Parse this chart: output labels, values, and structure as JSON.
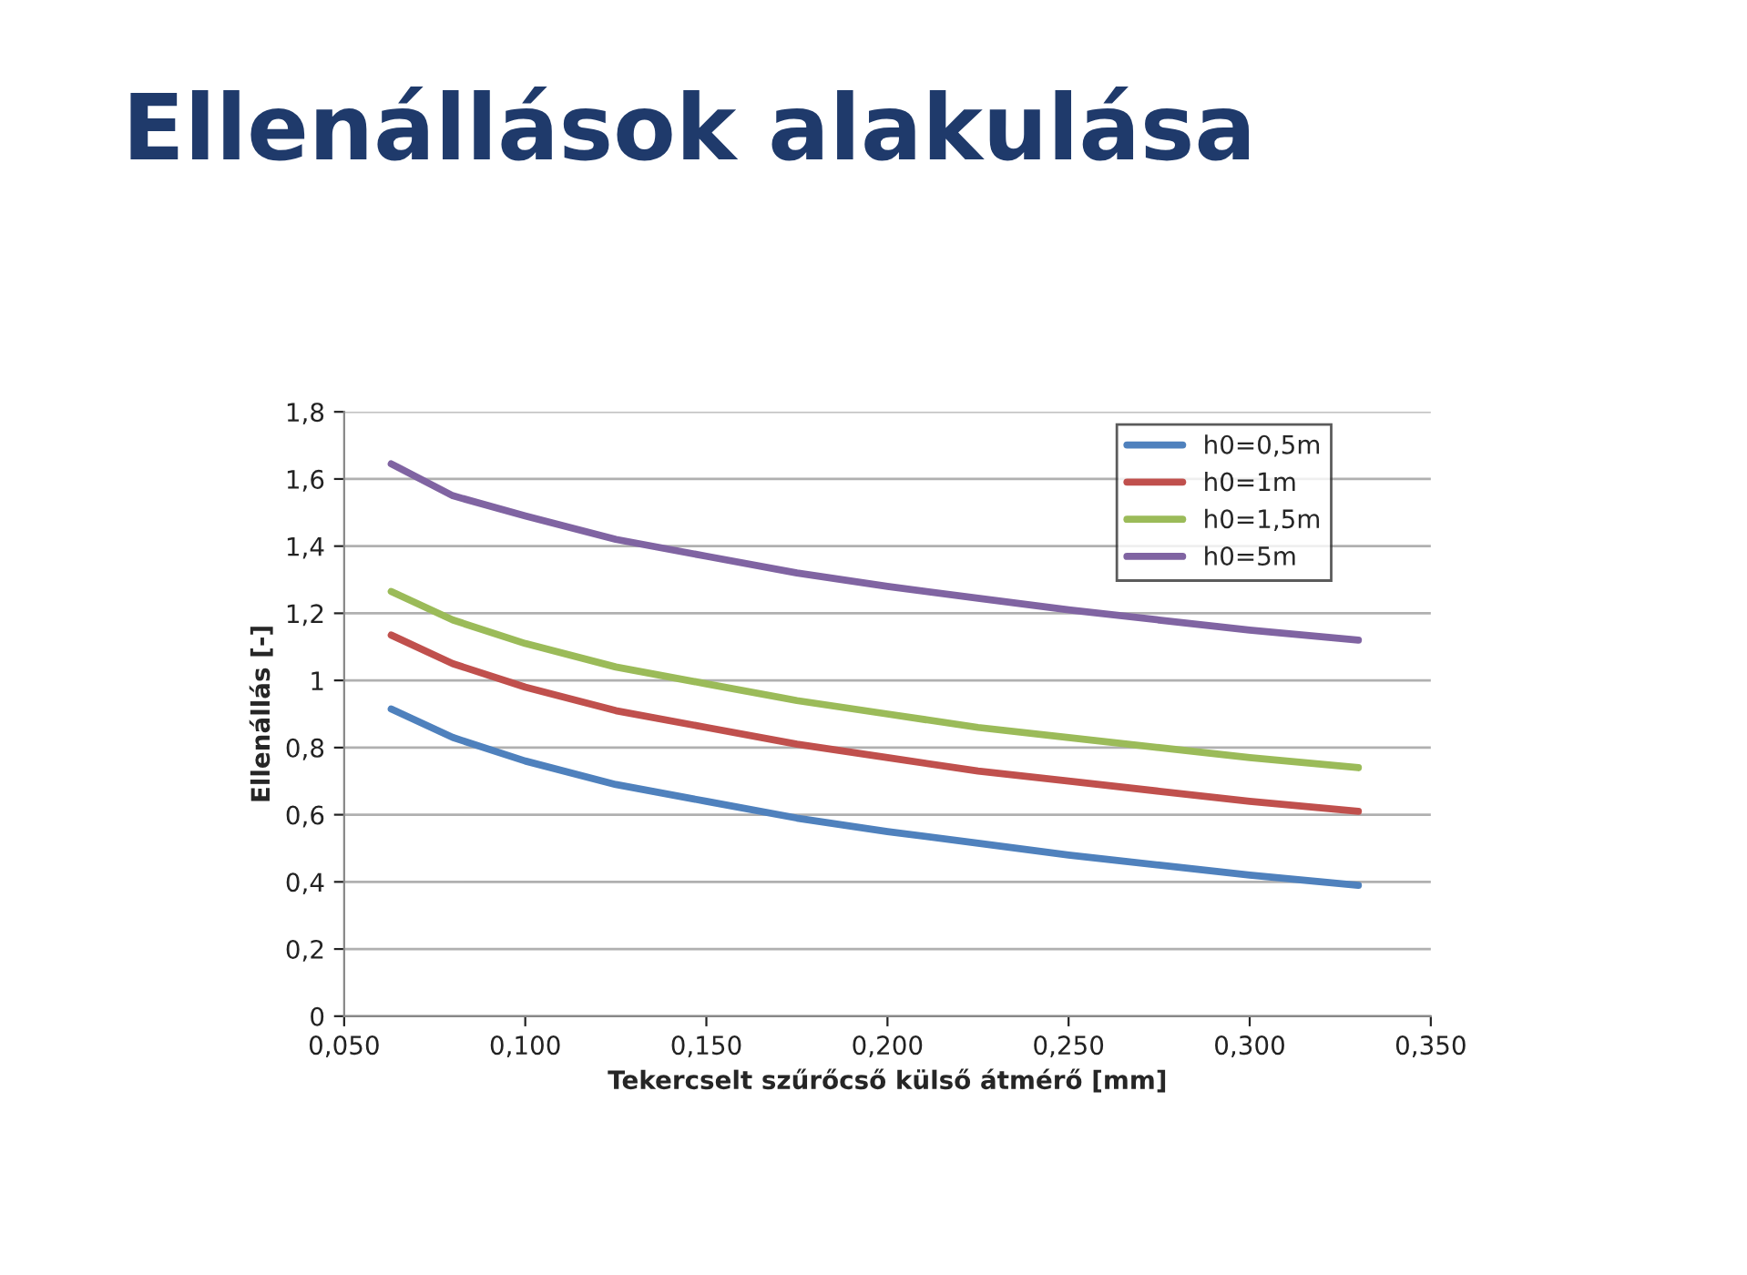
{
  "chart_data": {
    "type": "line",
    "title": "Ellenállások alakulása",
    "xlabel": "Tekercselt szűrőcső külső átmérő [mm]",
    "ylabel": "Ellenállás [-]",
    "x": [
      0.063,
      0.08,
      0.1,
      0.125,
      0.15,
      0.175,
      0.2,
      0.225,
      0.25,
      0.275,
      0.3,
      0.33
    ],
    "series": [
      {
        "name": "h0=0,5m",
        "color": "#4f81bd",
        "values": [
          0.915,
          0.83,
          0.76,
          0.69,
          0.64,
          0.59,
          0.55,
          0.515,
          0.48,
          0.45,
          0.42,
          0.39
        ]
      },
      {
        "name": "h0=1m",
        "color": "#c0504d",
        "values": [
          1.135,
          1.05,
          0.98,
          0.91,
          0.86,
          0.81,
          0.77,
          0.73,
          0.7,
          0.67,
          0.64,
          0.61
        ]
      },
      {
        "name": "h0=1,5m",
        "color": "#9bbb59",
        "values": [
          1.265,
          1.18,
          1.11,
          1.04,
          0.99,
          0.94,
          0.9,
          0.86,
          0.83,
          0.8,
          0.77,
          0.74
        ]
      },
      {
        "name": "h0=5m",
        "color": "#8064a2",
        "values": [
          1.645,
          1.55,
          1.49,
          1.42,
          1.37,
          1.32,
          1.28,
          1.245,
          1.21,
          1.18,
          1.15,
          1.12
        ]
      }
    ],
    "xlim": [
      0.05,
      0.35
    ],
    "xticks": [
      {
        "value": 0.05,
        "label": "0,050"
      },
      {
        "value": 0.1,
        "label": "0,100"
      },
      {
        "value": 0.15,
        "label": "0,150"
      },
      {
        "value": 0.2,
        "label": "0,200"
      },
      {
        "value": 0.25,
        "label": "0,250"
      },
      {
        "value": 0.3,
        "label": "0,300"
      },
      {
        "value": 0.35,
        "label": "0,350"
      }
    ],
    "ylim": [
      0,
      1.8
    ],
    "yticks": [
      0,
      {
        "value": 0.2,
        "label": "0,2"
      },
      {
        "value": 0.4,
        "label": "0,4"
      },
      {
        "value": 0.6,
        "label": "0,6"
      },
      {
        "value": 0.8,
        "label": "0,8"
      },
      1,
      {
        "value": 1.2,
        "label": "1,2"
      },
      {
        "value": 1.4,
        "label": "1,4"
      },
      {
        "value": 1.6,
        "label": "1,6"
      },
      {
        "value": 1.8,
        "label": "1,8"
      }
    ],
    "grid": "y",
    "legend": "top right",
    "marker": "none",
    "line_style": "solid"
  }
}
